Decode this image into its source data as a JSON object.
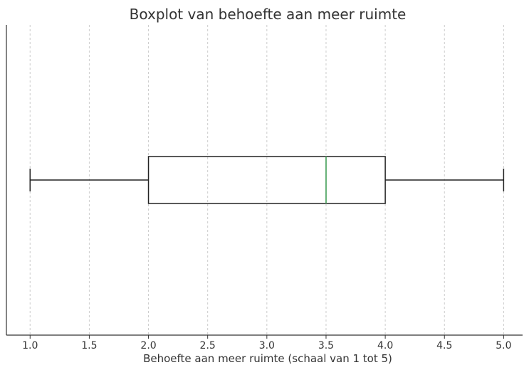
{
  "chart_data": {
    "type": "boxplot",
    "title": "Boxplot van behoefte aan meer ruimte",
    "xlabel": "Behoefte aan meer ruimte (schaal van 1 tot 5)",
    "ylabel": "",
    "orientation": "horizontal",
    "xlim": [
      0.8,
      5.16
    ],
    "xticks": [
      "1.0",
      "1.5",
      "2.0",
      "2.5",
      "3.0",
      "3.5",
      "4.0",
      "4.5",
      "5.0"
    ],
    "grid": "vertical dashed",
    "box": {
      "whisker_low": 1.0,
      "q1": 2.0,
      "median": 3.5,
      "q3": 4.0,
      "whisker_high": 5.0
    },
    "colors": {
      "median": "#55a868",
      "box": "#222222",
      "grid": "#cccccc",
      "axis": "#333333"
    }
  }
}
